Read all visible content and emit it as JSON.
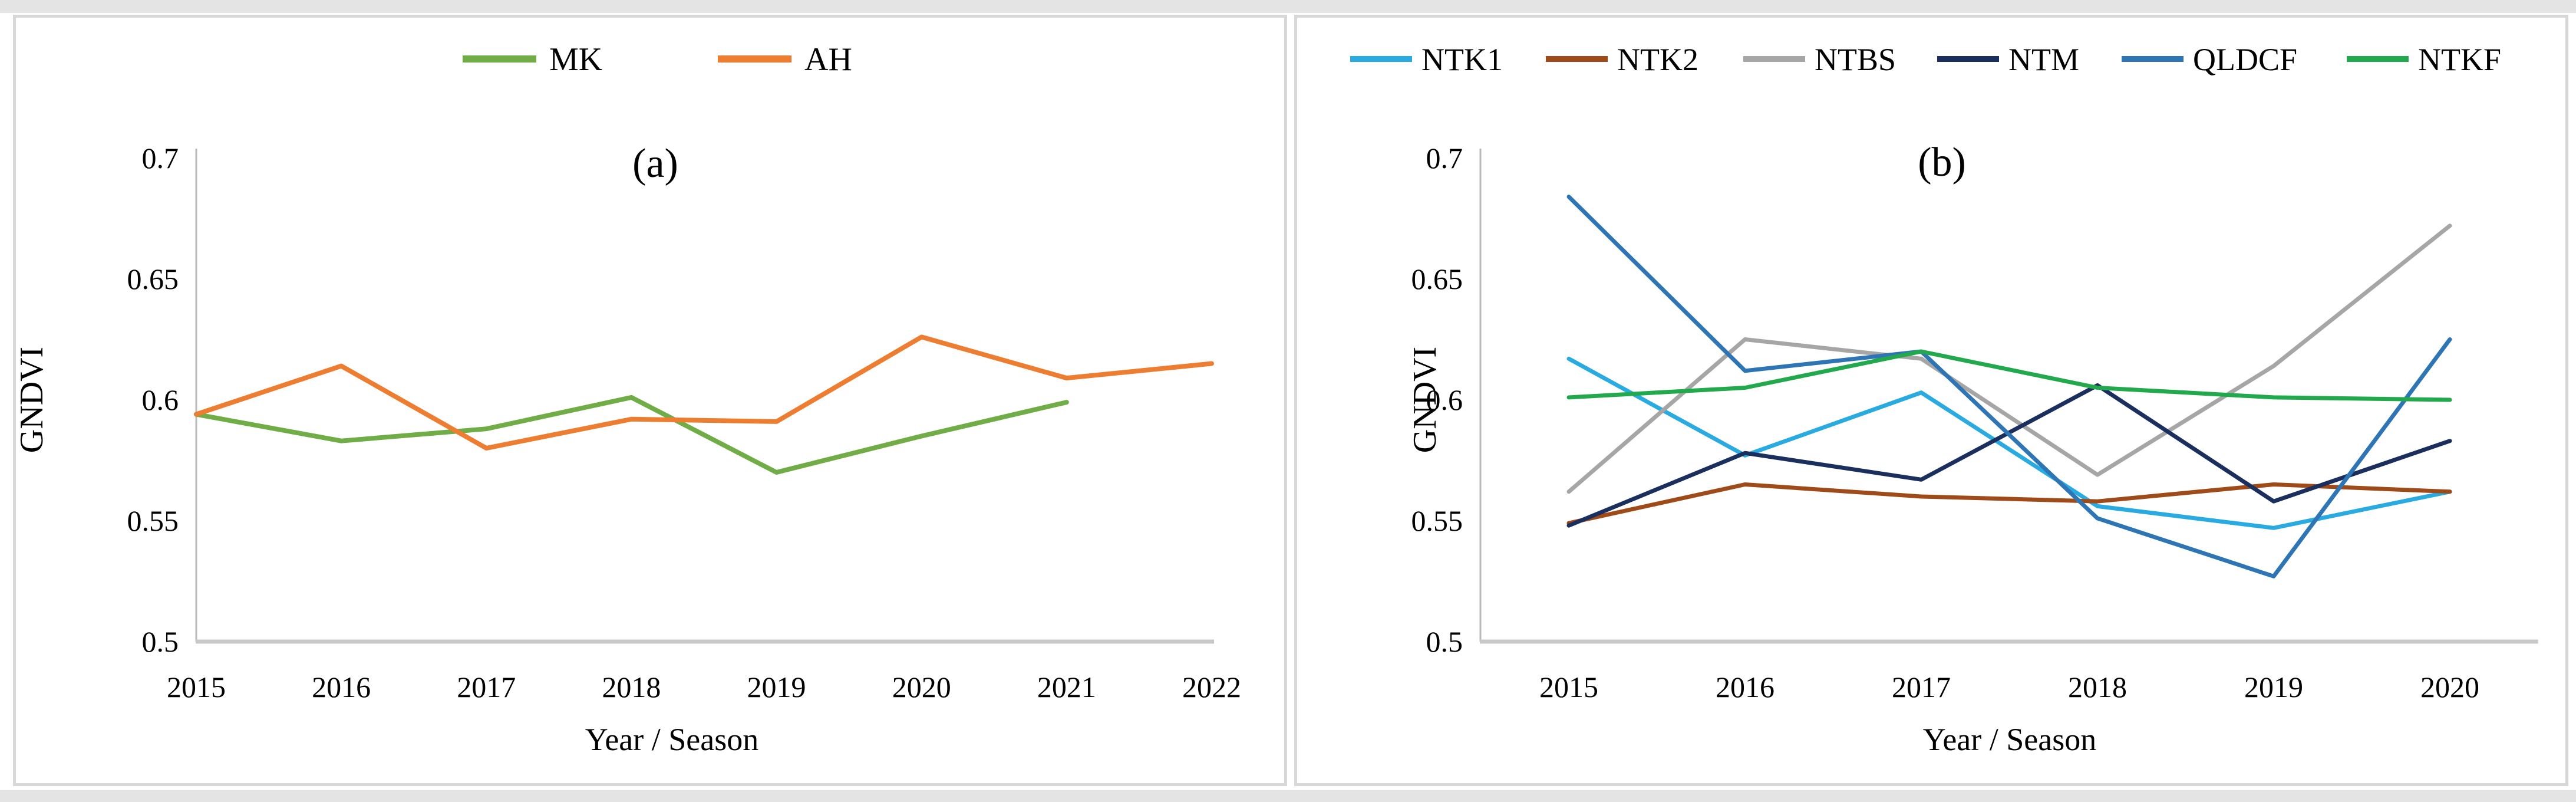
{
  "page": {
    "background": "#ffffff",
    "panel_border_color": "#d8d8d8"
  },
  "chart_data": [
    {
      "id": "a",
      "type": "line",
      "title": "(a)",
      "xlabel": "Year / Season",
      "ylabel": "GNDVI",
      "categories": [
        "2015",
        "2016",
        "2017",
        "2018",
        "2019",
        "2020",
        "2021",
        "2022"
      ],
      "ylim": [
        0.5,
        0.7
      ],
      "yticks": [
        "0.5",
        "0.55",
        "0.6",
        "0.65",
        "0.7"
      ],
      "grid": false,
      "legend_position": "top",
      "axis_line_color": "#c8c8c8",
      "series": [
        {
          "name": "MK",
          "color": "#70AD47",
          "values": [
            0.594,
            0.583,
            0.588,
            0.601,
            0.57,
            0.585,
            0.599,
            null
          ]
        },
        {
          "name": "AH",
          "color": "#ED7D31",
          "values": [
            0.594,
            0.614,
            0.58,
            0.592,
            0.591,
            0.626,
            0.609,
            0.615
          ]
        }
      ]
    },
    {
      "id": "b",
      "type": "line",
      "title": "(b)",
      "xlabel": "Year / Season",
      "ylabel": "GNDVI",
      "categories": [
        "2015",
        "2016",
        "2017",
        "2018",
        "2019",
        "2020"
      ],
      "ylim": [
        0.5,
        0.7
      ],
      "yticks": [
        "0.5",
        "0.55",
        "0.6",
        "0.65",
        "0.7"
      ],
      "grid": false,
      "legend_position": "top",
      "axis_line_color": "#c8c8c8",
      "series": [
        {
          "name": "NTK1",
          "color": "#29ABE2",
          "values": [
            0.617,
            0.577,
            0.603,
            0.556,
            0.547,
            0.562
          ]
        },
        {
          "name": "NTK2",
          "color": "#9E4B19",
          "values": [
            0.549,
            0.565,
            0.56,
            0.558,
            0.565,
            0.562
          ]
        },
        {
          "name": "NTBS",
          "color": "#A6A6A6",
          "values": [
            0.562,
            0.625,
            0.617,
            0.569,
            0.614,
            0.672
          ]
        },
        {
          "name": "NTM",
          "color": "#1B2F5E",
          "values": [
            0.548,
            0.578,
            0.567,
            0.606,
            0.558,
            0.583
          ]
        },
        {
          "name": "QLDCF",
          "color": "#2E75B6",
          "values": [
            0.684,
            0.612,
            0.62,
            0.551,
            0.527,
            0.625
          ]
        },
        {
          "name": "NTKF",
          "color": "#23A94D",
          "values": [
            0.601,
            0.605,
            0.62,
            0.605,
            0.601,
            0.6
          ]
        }
      ]
    }
  ]
}
